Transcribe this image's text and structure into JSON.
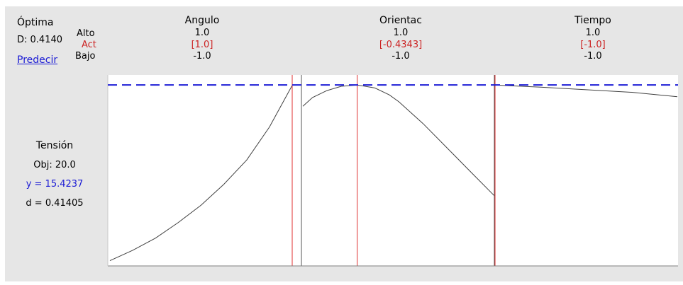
{
  "optimal": {
    "title": "Óptima",
    "d_label": "D: 0.4140",
    "predict_link": "Predecir",
    "high_label": "Alto",
    "cur_label": "Act",
    "low_label": "Bajo"
  },
  "response": {
    "name": "Tensión",
    "goal": "Obj: 20.0",
    "y_text": "y = 15.4237",
    "d_text": "d = 0.41405"
  },
  "colors": {
    "reference_line": "#1f1fd6",
    "current_setting": "#e03030",
    "curve": "#404040",
    "act_text": "#cc2222",
    "link": "#1a1ad4"
  },
  "chart_data": {
    "type": "line",
    "response_reference_y": 15.4237,
    "grid": false,
    "panels": [
      {
        "factor": "Angulo",
        "high": "1.0",
        "current": "[1.0]",
        "low": "-1.0",
        "x_range": [
          -1,
          1
        ],
        "current_x": 1.0,
        "x": [
          -1.0,
          -0.75,
          -0.5,
          -0.25,
          0.0,
          0.25,
          0.5,
          0.75,
          1.0
        ],
        "y": [
          5.3,
          5.9,
          6.6,
          7.5,
          8.5,
          9.7,
          11.1,
          13.0,
          15.4
        ]
      },
      {
        "factor": "Orientac",
        "high": "1.0",
        "current": "[-0.4343]",
        "low": "-1.0",
        "x_range": [
          -1,
          1
        ],
        "current_x": -0.4343,
        "x": [
          -1.0,
          -0.9,
          -0.75,
          -0.6,
          -0.4343,
          -0.25,
          -0.1,
          0.0,
          0.25,
          0.5,
          0.75,
          1.0
        ],
        "y": [
          14.2,
          14.7,
          15.1,
          15.35,
          15.42,
          15.25,
          14.85,
          14.45,
          13.2,
          11.8,
          10.4,
          9.0
        ]
      },
      {
        "factor": "Tiempo",
        "high": "1.0",
        "current": "[-1.0]",
        "low": "-1.0",
        "x_range": [
          -1,
          1
        ],
        "current_x": -1.0,
        "x": [
          -1.0,
          -0.5,
          0.0,
          0.5,
          1.0
        ],
        "y": [
          15.42,
          15.3,
          15.15,
          15.0,
          14.75
        ]
      }
    ],
    "y_range": [
      5.0,
      16.0
    ]
  }
}
